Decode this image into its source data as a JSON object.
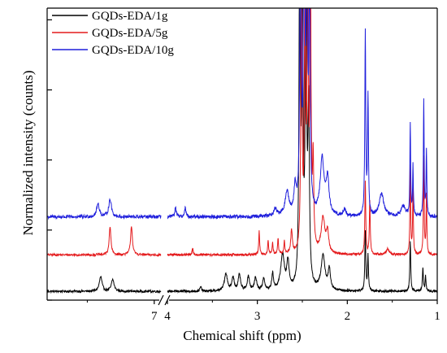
{
  "chart_data": {
    "type": "line",
    "title": "",
    "xlabel": "Chemical shift (ppm)",
    "ylabel": "Normalized intensity (counts)",
    "x_reversed": true,
    "x_axis_broken": true,
    "x_segments": [
      {
        "from": 7.8,
        "to": 6.95
      },
      {
        "from": 4.0,
        "to": 1.0
      }
    ],
    "xticks": [
      {
        "value": 7,
        "label": "7"
      },
      {
        "value": 4,
        "label": "4"
      },
      {
        "value": 3,
        "label": "3"
      },
      {
        "value": 2,
        "label": "2"
      },
      {
        "value": 1,
        "label": "1"
      }
    ],
    "yticks_labeled": false,
    "grid": false,
    "legend_position": "top-left",
    "series": [
      {
        "name": "GQDs-EDA/1g",
        "color": "#000000",
        "baseline": 0.03,
        "noise": 0.004,
        "peaks": [
          {
            "x": 7.4,
            "h": 0.05,
            "w": 0.012
          },
          {
            "x": 7.31,
            "h": 0.04,
            "w": 0.012
          },
          {
            "x": 3.63,
            "h": 0.015,
            "w": 0.01
          },
          {
            "x": 3.35,
            "h": 0.06,
            "w": 0.02
          },
          {
            "x": 3.27,
            "h": 0.045,
            "w": 0.015
          },
          {
            "x": 3.2,
            "h": 0.055,
            "w": 0.015
          },
          {
            "x": 3.1,
            "h": 0.05,
            "w": 0.015
          },
          {
            "x": 3.02,
            "h": 0.045,
            "w": 0.015
          },
          {
            "x": 2.93,
            "h": 0.04,
            "w": 0.015
          },
          {
            "x": 2.83,
            "h": 0.055,
            "w": 0.012
          },
          {
            "x": 2.72,
            "h": 0.12,
            "w": 0.025
          },
          {
            "x": 2.66,
            "h": 0.09,
            "w": 0.015
          },
          {
            "x": 2.53,
            "h": 1.2,
            "w": 0.008
          },
          {
            "x": 2.5,
            "h": 1.2,
            "w": 0.008
          },
          {
            "x": 2.46,
            "h": 1.2,
            "w": 0.008
          },
          {
            "x": 2.43,
            "h": 0.6,
            "w": 0.01
          },
          {
            "x": 2.27,
            "h": 0.12,
            "w": 0.025
          },
          {
            "x": 2.2,
            "h": 0.07,
            "w": 0.015
          },
          {
            "x": 1.8,
            "h": 0.2,
            "w": 0.006
          },
          {
            "x": 1.77,
            "h": 0.12,
            "w": 0.006
          },
          {
            "x": 1.3,
            "h": 0.17,
            "w": 0.006
          },
          {
            "x": 1.16,
            "h": 0.08,
            "w": 0.006
          },
          {
            "x": 1.13,
            "h": 0.05,
            "w": 0.006
          }
        ]
      },
      {
        "name": "GQDs-EDA/5g",
        "color": "#e41a1c",
        "baseline": 0.155,
        "noise": 0.004,
        "peaks": [
          {
            "x": 7.33,
            "h": 0.095,
            "w": 0.008
          },
          {
            "x": 7.17,
            "h": 0.1,
            "w": 0.008
          },
          {
            "x": 3.72,
            "h": 0.02,
            "w": 0.008
          },
          {
            "x": 2.98,
            "h": 0.08,
            "w": 0.006
          },
          {
            "x": 2.88,
            "h": 0.05,
            "w": 0.006
          },
          {
            "x": 2.83,
            "h": 0.04,
            "w": 0.006
          },
          {
            "x": 2.77,
            "h": 0.055,
            "w": 0.006
          },
          {
            "x": 2.7,
            "h": 0.045,
            "w": 0.006
          },
          {
            "x": 2.62,
            "h": 0.08,
            "w": 0.01
          },
          {
            "x": 2.51,
            "h": 1.1,
            "w": 0.007
          },
          {
            "x": 2.47,
            "h": 1.1,
            "w": 0.007
          },
          {
            "x": 2.44,
            "h": 1.1,
            "w": 0.007
          },
          {
            "x": 2.41,
            "h": 1.1,
            "w": 0.007
          },
          {
            "x": 2.38,
            "h": 0.3,
            "w": 0.008
          },
          {
            "x": 2.27,
            "h": 0.12,
            "w": 0.025
          },
          {
            "x": 2.22,
            "h": 0.07,
            "w": 0.015
          },
          {
            "x": 1.8,
            "h": 0.25,
            "w": 0.006
          },
          {
            "x": 1.75,
            "h": 0.18,
            "w": 0.006
          },
          {
            "x": 1.55,
            "h": 0.02,
            "w": 0.02
          },
          {
            "x": 1.3,
            "h": 0.3,
            "w": 0.005
          },
          {
            "x": 1.27,
            "h": 0.22,
            "w": 0.005
          },
          {
            "x": 1.15,
            "h": 0.33,
            "w": 0.005
          },
          {
            "x": 1.12,
            "h": 0.2,
            "w": 0.005
          }
        ]
      },
      {
        "name": "GQDs-EDA/10g",
        "color": "#1f1fdc",
        "baseline": 0.285,
        "noise": 0.006,
        "peaks": [
          {
            "x": 7.42,
            "h": 0.045,
            "w": 0.012
          },
          {
            "x": 7.33,
            "h": 0.06,
            "w": 0.012
          },
          {
            "x": 3.91,
            "h": 0.03,
            "w": 0.01
          },
          {
            "x": 3.8,
            "h": 0.03,
            "w": 0.01
          },
          {
            "x": 2.8,
            "h": 0.025,
            "w": 0.02
          },
          {
            "x": 2.67,
            "h": 0.08,
            "w": 0.025
          },
          {
            "x": 2.58,
            "h": 0.09,
            "w": 0.015
          },
          {
            "x": 2.52,
            "h": 1.2,
            "w": 0.008
          },
          {
            "x": 2.48,
            "h": 1.2,
            "w": 0.008
          },
          {
            "x": 2.45,
            "h": 1.2,
            "w": 0.008
          },
          {
            "x": 2.42,
            "h": 0.8,
            "w": 0.008
          },
          {
            "x": 2.28,
            "h": 0.19,
            "w": 0.025
          },
          {
            "x": 2.22,
            "h": 0.12,
            "w": 0.02
          },
          {
            "x": 2.03,
            "h": 0.025,
            "w": 0.015
          },
          {
            "x": 1.8,
            "h": 0.63,
            "w": 0.006
          },
          {
            "x": 1.77,
            "h": 0.4,
            "w": 0.006
          },
          {
            "x": 1.62,
            "h": 0.08,
            "w": 0.03
          },
          {
            "x": 1.38,
            "h": 0.035,
            "w": 0.03
          },
          {
            "x": 1.3,
            "h": 0.32,
            "w": 0.005
          },
          {
            "x": 1.27,
            "h": 0.17,
            "w": 0.005
          },
          {
            "x": 1.15,
            "h": 0.4,
            "w": 0.005
          },
          {
            "x": 1.12,
            "h": 0.22,
            "w": 0.005
          }
        ]
      }
    ],
    "y_range": [
      0,
      1.0
    ]
  }
}
